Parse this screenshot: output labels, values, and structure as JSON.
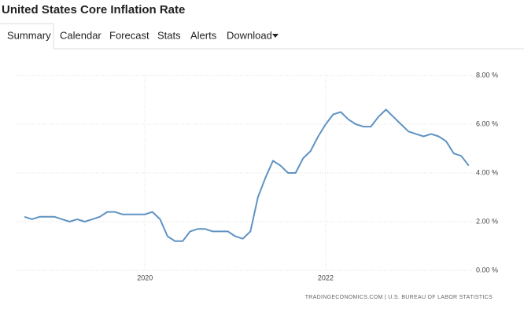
{
  "tabs": [
    "Summary",
    "Calendar",
    "Forecast",
    "Stats",
    "Alerts",
    "Download"
  ],
  "chart_data": {
    "type": "line",
    "title": "United States Core Inflation Rate",
    "source": "TRADINGECONOMICS.COM | U.S. BUREAU OF LABOR STATISTICS",
    "x": [
      2018.667,
      2018.75,
      2018.833,
      2018.917,
      2019.0,
      2019.083,
      2019.167,
      2019.25,
      2019.333,
      2019.417,
      2019.5,
      2019.583,
      2019.667,
      2019.75,
      2019.833,
      2019.917,
      2020.0,
      2020.083,
      2020.167,
      2020.25,
      2020.333,
      2020.417,
      2020.5,
      2020.583,
      2020.667,
      2020.75,
      2020.833,
      2020.917,
      2021.0,
      2021.083,
      2021.167,
      2021.25,
      2021.333,
      2021.417,
      2021.5,
      2021.583,
      2021.667,
      2021.75,
      2021.833,
      2021.917,
      2022.0,
      2022.083,
      2022.167,
      2022.25,
      2022.333,
      2022.417,
      2022.5,
      2022.583,
      2022.667,
      2022.75,
      2022.833,
      2022.917,
      2023.0,
      2023.083,
      2023.167,
      2023.25,
      2023.333,
      2023.417,
      2023.5,
      2023.583
    ],
    "series": [
      {
        "name": "Core Inflation Rate",
        "color": "#5f93c2",
        "values": [
          2.2,
          2.1,
          2.2,
          2.2,
          2.2,
          2.1,
          2.0,
          2.1,
          2.0,
          2.1,
          2.2,
          2.4,
          2.4,
          2.3,
          2.3,
          2.3,
          2.3,
          2.4,
          2.1,
          1.4,
          1.2,
          1.2,
          1.6,
          1.7,
          1.7,
          1.6,
          1.6,
          1.6,
          1.4,
          1.3,
          1.6,
          3.0,
          3.8,
          4.5,
          4.3,
          4.0,
          4.0,
          4.6,
          4.9,
          5.5,
          6.0,
          6.4,
          6.5,
          6.2,
          6.0,
          5.9,
          5.9,
          6.3,
          6.6,
          6.3,
          6.0,
          5.7,
          5.6,
          5.5,
          5.6,
          5.5,
          5.3,
          4.8,
          4.7,
          4.3
        ]
      }
    ],
    "xlim": [
      2018.57,
      2023.62
    ],
    "xticks": [
      2020,
      2022
    ],
    "ylim": [
      0,
      8
    ],
    "yticks": [
      {
        "value": 0,
        "label": "0.00 %"
      },
      {
        "value": 2,
        "label": "2.00 %"
      },
      {
        "value": 4,
        "label": "4.00 %"
      },
      {
        "value": 6,
        "label": "6.00 %"
      },
      {
        "value": 8,
        "label": "8.00 %"
      }
    ],
    "grid": true
  }
}
